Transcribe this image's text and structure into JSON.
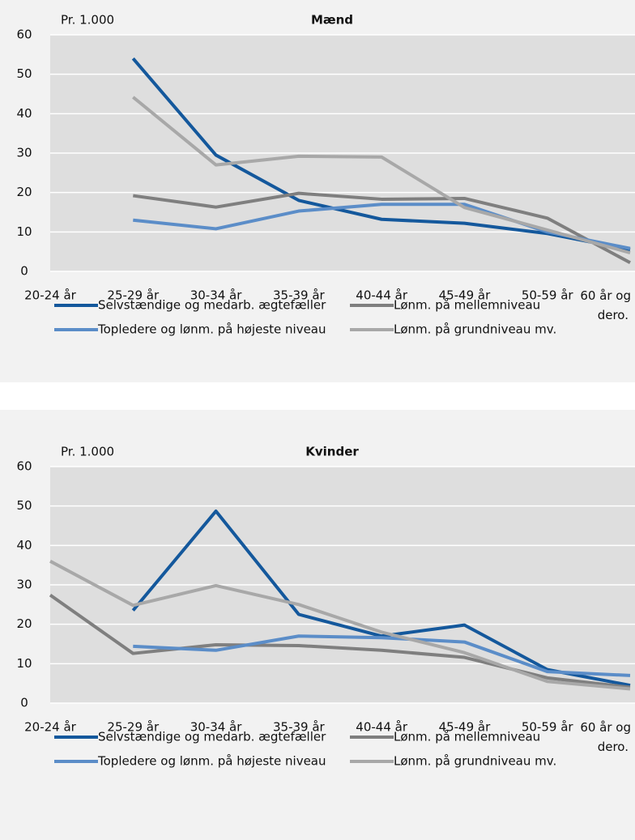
{
  "chart_data": [
    {
      "type": "line",
      "title": "Mænd",
      "y_axis_label": "Pr. 1.000",
      "categories": [
        "20-24 år",
        "25-29 år",
        "30-34 år",
        "35-39 år",
        "40-44 år",
        "45-49 år",
        "50-59 år",
        "60 år og dero."
      ],
      "ylim": [
        0,
        60
      ],
      "yticks": [
        0,
        10,
        20,
        30,
        40,
        50,
        60
      ],
      "grid": true,
      "series": [
        {
          "name": "Selvstændige og medarb. ægtefæller",
          "color": "#14589c",
          "values": [
            null,
            54,
            29.5,
            18,
            13.2,
            12.2,
            9.6,
            5.5
          ]
        },
        {
          "name": "Lønm. på mellemniveau",
          "color": "#7f7f7f",
          "values": [
            null,
            19.2,
            16.3,
            19.8,
            18.3,
            18.5,
            13.5,
            2.2
          ]
        },
        {
          "name": "Topledere og lønm. på højeste niveau",
          "color": "#5b8dc8",
          "values": [
            null,
            13,
            10.8,
            15.3,
            17,
            17,
            10,
            5.8
          ]
        },
        {
          "name": "Lønm. på grundniveau mv.",
          "color": "#a8a8a8",
          "values": [
            null,
            44.2,
            27,
            29.2,
            29,
            16.2,
            10.5,
            4.7
          ]
        }
      ]
    },
    {
      "type": "line",
      "title": "Kvinder",
      "y_axis_label": "Pr. 1.000",
      "categories": [
        "20-24 år",
        "25-29 år",
        "30-34 år",
        "35-39 år",
        "40-44 år",
        "45-49 år",
        "50-59 år",
        "60 år og dero."
      ],
      "ylim": [
        0,
        60
      ],
      "yticks": [
        0,
        10,
        20,
        30,
        40,
        50,
        60
      ],
      "grid": true,
      "series": [
        {
          "name": "Selvstændige og medarb. ægtefæller",
          "color": "#14589c",
          "values": [
            null,
            23.5,
            48.7,
            22.5,
            17,
            19.8,
            8.5,
            4.5
          ]
        },
        {
          "name": "Lønm. på mellemniveau",
          "color": "#7f7f7f",
          "values": [
            27.4,
            12.6,
            14.8,
            14.6,
            13.4,
            11.6,
            6.4,
            4
          ]
        },
        {
          "name": "Topledere og lønm. på højeste niveau",
          "color": "#5b8dc8",
          "values": [
            null,
            14.4,
            13.4,
            17,
            16.6,
            15.5,
            8,
            7
          ]
        },
        {
          "name": "Lønm. på grundniveau mv.",
          "color": "#a8a8a8",
          "values": [
            36,
            24.8,
            29.8,
            25,
            18,
            12.8,
            5.5,
            3.6
          ]
        }
      ]
    }
  ]
}
